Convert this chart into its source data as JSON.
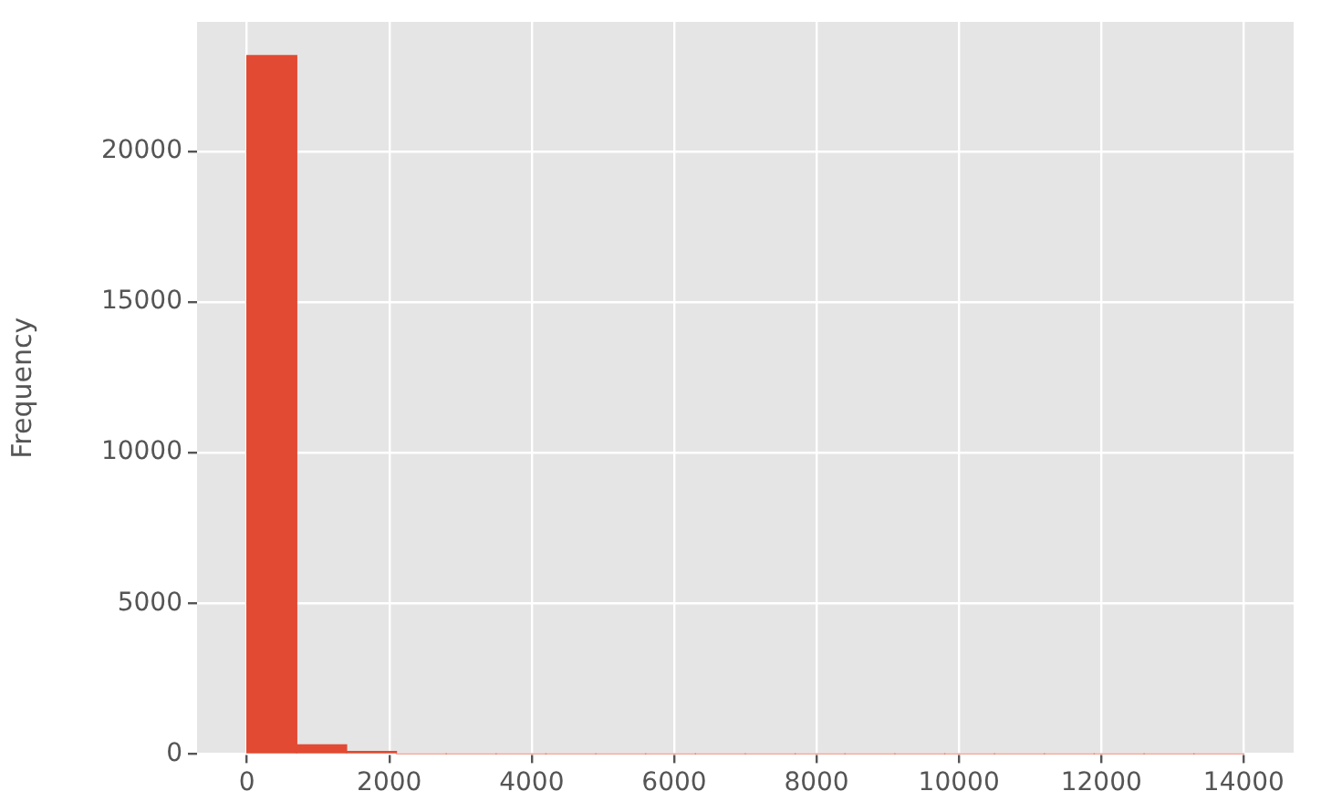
{
  "chart_data": {
    "type": "histogram",
    "ylabel": "Frequency",
    "bins": [
      0,
      700,
      1400,
      2100,
      2800,
      3500,
      4200,
      4900,
      5600,
      6300,
      7000,
      7700,
      8400,
      9100,
      9800,
      10500,
      11200,
      11900,
      12600,
      13300,
      14000
    ],
    "values": [
      23180,
      300,
      80,
      0,
      0,
      0,
      0,
      0,
      0,
      0,
      0,
      0,
      0,
      0,
      0,
      0,
      0,
      0,
      0,
      0
    ],
    "color": "#e24a33",
    "xlim": [
      -700,
      14700
    ],
    "xticks": [
      0,
      2000,
      4000,
      6000,
      8000,
      10000,
      12000,
      14000
    ],
    "ylim": [
      0,
      24300
    ],
    "yticks": [
      0,
      5000,
      10000,
      15000,
      20000
    ],
    "grid": true
  }
}
